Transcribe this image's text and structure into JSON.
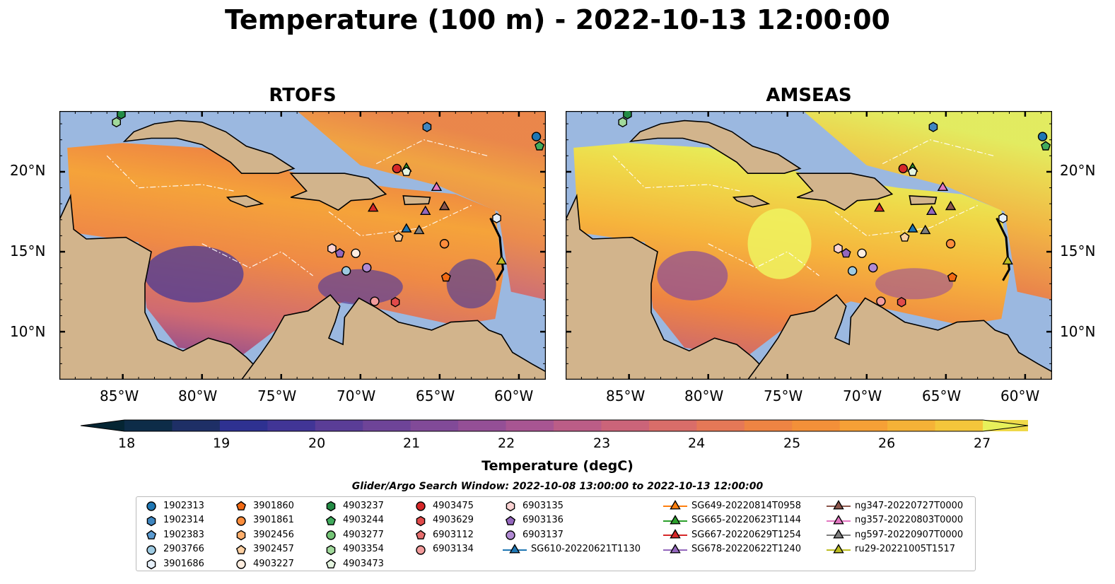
{
  "title": "Temperature (100 m) - 2022-10-13 12:00:00",
  "panels": [
    {
      "title": "RTOFS"
    },
    {
      "title": "AMSEAS"
    }
  ],
  "axes": {
    "lon_ticks": [
      "85°W",
      "80°W",
      "75°W",
      "70°W",
      "65°W",
      "60°W"
    ],
    "lat_ticks": [
      "20°N",
      "15°N",
      "10°N"
    ]
  },
  "colorbar": {
    "label": "Temperature (degC)",
    "ticks": [
      "18",
      "19",
      "20",
      "21",
      "22",
      "23",
      "24",
      "25",
      "26",
      "27"
    ],
    "min": 18,
    "max": 27,
    "colors": [
      "#052533",
      "#0d2c48",
      "#1e2f66",
      "#2e3191",
      "#413596",
      "#5a3d97",
      "#6e4498",
      "#814a98",
      "#944f96",
      "#a85592",
      "#bb5d87",
      "#cb6479",
      "#d96d69",
      "#e57857",
      "#ee8443",
      "#f39039",
      "#f6a036",
      "#f5b237",
      "#f4c63b",
      "#efd949",
      "#e7f05a"
    ]
  },
  "legend": {
    "search_window": "Glider/Argo Search Window: 2022-10-08 13:00:00 to 2022-10-13 12:00:00",
    "entries": [
      {
        "label": "1902313",
        "marker": "circle",
        "color": "#1f77b4"
      },
      {
        "label": "1902314",
        "marker": "hexagon",
        "color": "#3f86c0"
      },
      {
        "label": "1902383",
        "marker": "pentagon",
        "color": "#5b9bd1"
      },
      {
        "label": "2903766",
        "marker": "circle",
        "color": "#9ecae1"
      },
      {
        "label": "3901686",
        "marker": "hexagon",
        "color": "#e6f0fa"
      },
      {
        "label": "3901860",
        "marker": "pentagon",
        "color": "#f16913"
      },
      {
        "label": "3901861",
        "marker": "circle",
        "color": "#fd8d3c"
      },
      {
        "label": "3902456",
        "marker": "hexagon",
        "color": "#fdae6b"
      },
      {
        "label": "3902457",
        "marker": "pentagon",
        "color": "#fdd0a2"
      },
      {
        "label": "4903227",
        "marker": "circle",
        "color": "#feeddf"
      },
      {
        "label": "4903237",
        "marker": "hexagon",
        "color": "#238b45"
      },
      {
        "label": "4903244",
        "marker": "pentagon",
        "color": "#41ab5d"
      },
      {
        "label": "4903277",
        "marker": "circle",
        "color": "#74c476"
      },
      {
        "label": "4903354",
        "marker": "hexagon",
        "color": "#a1d99b"
      },
      {
        "label": "4903473",
        "marker": "pentagon",
        "color": "#e5f5e0"
      },
      {
        "label": "4903475",
        "marker": "circle",
        "color": "#d62728"
      },
      {
        "label": "4903629",
        "marker": "hexagon",
        "color": "#e04a4a"
      },
      {
        "label": "6903112",
        "marker": "pentagon",
        "color": "#e76f6f"
      },
      {
        "label": "6903134",
        "marker": "circle",
        "color": "#f29b9b"
      },
      {
        "label": "6903135",
        "marker": "hexagon",
        "color": "#fbd3d3"
      },
      {
        "label": "6903136",
        "marker": "pentagon",
        "color": "#9467bd"
      },
      {
        "label": "6903137",
        "marker": "circle",
        "color": "#b18ad3"
      },
      {
        "label": "SG610-20220621T1130",
        "marker": "triangle",
        "color": "#1f77b4",
        "line": true
      },
      {
        "label": "SG649-20220814T0958",
        "marker": "triangle",
        "color": "#ff7f0e",
        "line": true
      },
      {
        "label": "SG665-20220623T1144",
        "marker": "triangle",
        "color": "#2ca02c",
        "line": true
      },
      {
        "label": "SG667-20220629T1254",
        "marker": "triangle",
        "color": "#d62728",
        "line": true
      },
      {
        "label": "SG678-20220622T1240",
        "marker": "triangle",
        "color": "#9467bd",
        "line": true
      },
      {
        "label": "ng347-20220727T0000",
        "marker": "triangle",
        "color": "#8c564b",
        "line": true
      },
      {
        "label": "ng357-20220803T0000",
        "marker": "triangle",
        "color": "#e377c2",
        "line": true
      },
      {
        "label": "ng597-20220907T0000",
        "marker": "triangle",
        "color": "#7f7f7f",
        "line": true
      },
      {
        "label": "ru29-20221005T1517",
        "marker": "triangle",
        "color": "#bcbd22",
        "line": true
      }
    ]
  },
  "platforms": [
    {
      "id": "1902313",
      "lon": -58.9,
      "lat": 22.2
    },
    {
      "id": "1902314",
      "lon": -65.8,
      "lat": 22.8
    },
    {
      "id": "4903237",
      "lon": -85.1,
      "lat": 23.6
    },
    {
      "id": "4903244",
      "lon": -58.7,
      "lat": 21.6
    },
    {
      "id": "4903354",
      "lon": -85.4,
      "lat": 23.1
    },
    {
      "id": "4903475",
      "lon": -67.7,
      "lat": 20.2
    },
    {
      "id": "SG665-20220623T1144",
      "lon": -67.1,
      "lat": 20.2
    },
    {
      "id": "4903473",
      "lon": -67.1,
      "lat": 20.0
    },
    {
      "id": "ng357-20220803T0000",
      "lon": -65.2,
      "lat": 19.0
    },
    {
      "id": "SG667-20220629T1254",
      "lon": -69.2,
      "lat": 17.7
    },
    {
      "id": "SG678-20220622T1240",
      "lon": -65.9,
      "lat": 17.5
    },
    {
      "id": "ng347-20220727T0000",
      "lon": -64.7,
      "lat": 17.8
    },
    {
      "id": "3901686",
      "lon": -61.4,
      "lat": 17.1
    },
    {
      "id": "SG610-20220621T1130",
      "lon": -67.1,
      "lat": 16.4
    },
    {
      "id": "ng597-20220907T0000",
      "lon": -66.3,
      "lat": 16.3
    },
    {
      "id": "3902457",
      "lon": -67.6,
      "lat": 15.9
    },
    {
      "id": "3901861",
      "lon": -64.7,
      "lat": 15.5
    },
    {
      "id": "6903135",
      "lon": -71.8,
      "lat": 15.2
    },
    {
      "id": "6903136",
      "lon": -71.3,
      "lat": 14.9
    },
    {
      "id": "4903227",
      "lon": -70.3,
      "lat": 14.9
    },
    {
      "id": "ru29-20221005T1517",
      "lon": -61.1,
      "lat": 14.4
    },
    {
      "id": "6903137",
      "lon": -69.6,
      "lat": 14.0
    },
    {
      "id": "2903766",
      "lon": -70.9,
      "lat": 13.8
    },
    {
      "id": "3901860",
      "lon": -64.6,
      "lat": 13.4
    },
    {
      "id": "6903134",
      "lon": -69.1,
      "lat": 11.9
    },
    {
      "id": "4903629",
      "lon": -67.8,
      "lat": 11.85
    }
  ]
}
